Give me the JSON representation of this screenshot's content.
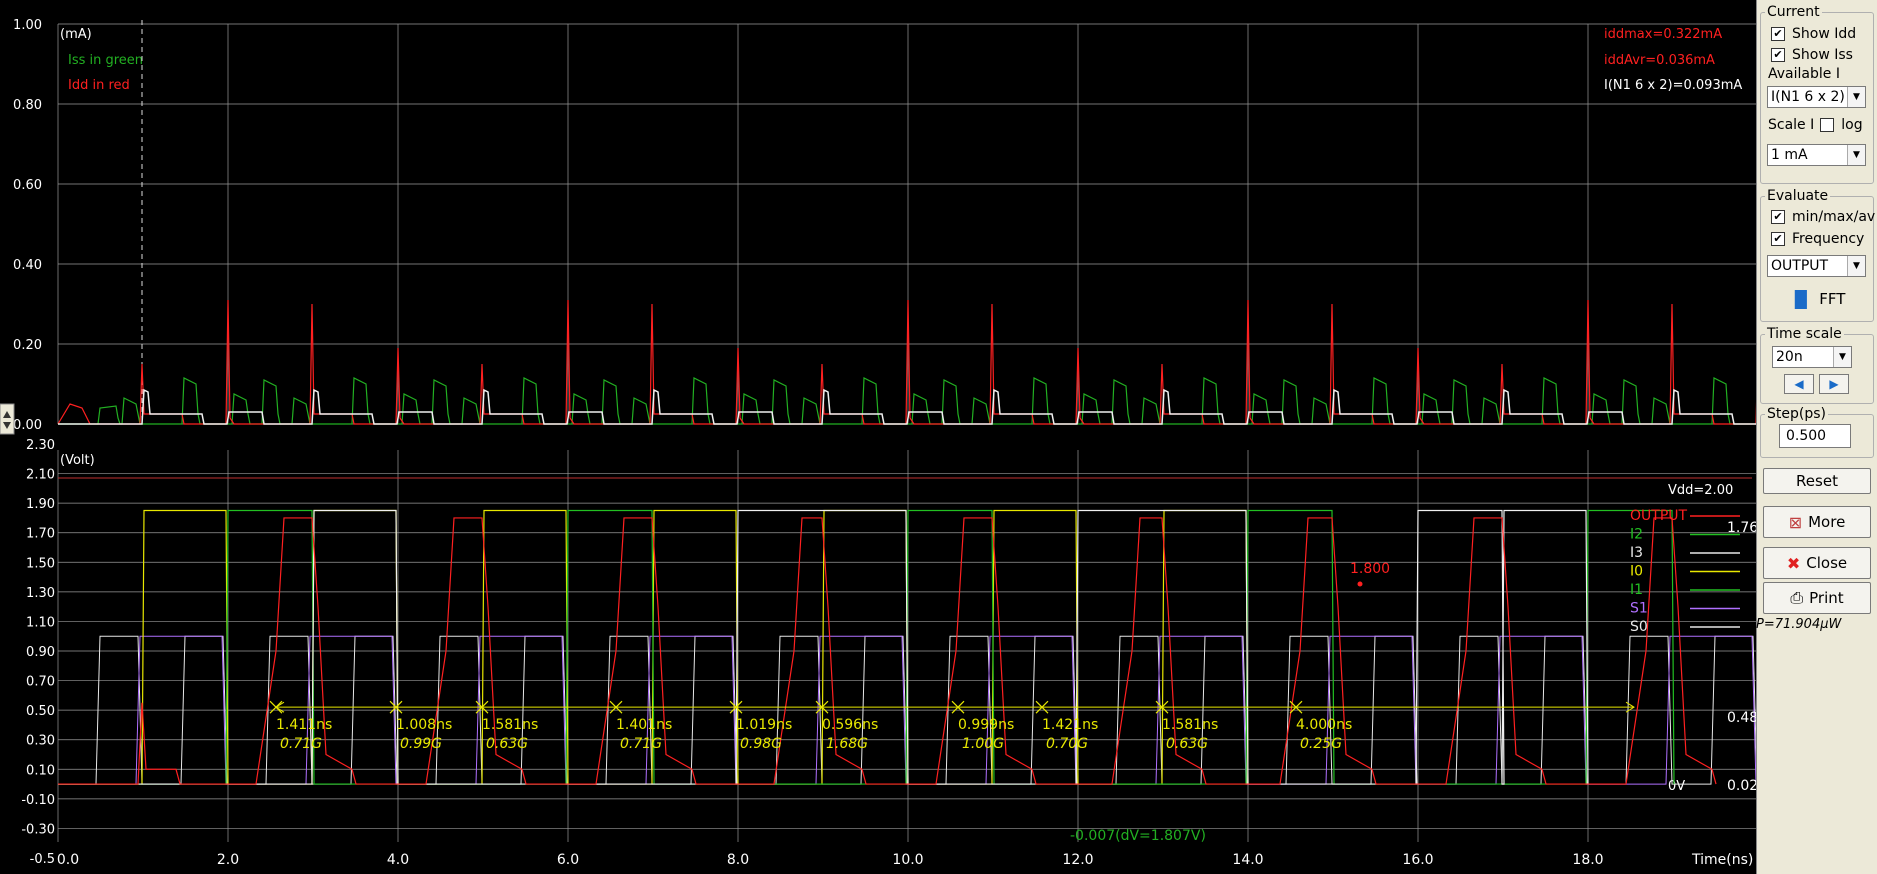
{
  "current_plot": {
    "unit_label": "(mA)",
    "legend": {
      "iss": "Iss in green",
      "idd": "Idd in red"
    },
    "stats": {
      "iddmax": "iddmax=0.322mA",
      "iddavr": "iddAvr=0.036mA",
      "inode": "I(N1 6 x 2)=0.093mA"
    },
    "y_ticks": [
      "1.00",
      "0.80",
      "0.60",
      "0.40",
      "0.20",
      "0.00"
    ]
  },
  "voltage_plot": {
    "unit_label": "(Volt)",
    "y_ticks": [
      "2.30",
      "2.10",
      "1.90",
      "1.70",
      "1.50",
      "1.30",
      "1.10",
      "0.90",
      "0.70",
      "0.50",
      "0.30",
      "0.10",
      "-0.10",
      "-0.30",
      "-0.5"
    ],
    "x_ticks": [
      "0.0",
      "2.0",
      "4.0",
      "6.0",
      "8.0",
      "10.0",
      "12.0",
      "14.0",
      "16.0",
      "18.0"
    ],
    "x_label": "Time(ns)",
    "vdd_label": "Vdd=2.00",
    "zero_label": "0V",
    "cursor_value": "1.800",
    "cursor_bottom": "-0.007(dV=1.807V)",
    "right_values": [
      "1.76",
      "0.48",
      "0.02"
    ],
    "signals": [
      {
        "name": "OUTPUT",
        "color": "#ff2020"
      },
      {
        "name": "I2",
        "color": "#22c022"
      },
      {
        "name": "I3",
        "color": "#e8e8e8"
      },
      {
        "name": "I0",
        "color": "#e8e800"
      },
      {
        "name": "I1",
        "color": "#22c022"
      },
      {
        "name": "S1",
        "color": "#b070ff"
      },
      {
        "name": "S0",
        "color": "#e8e8e8"
      }
    ],
    "measurements": [
      {
        "ns": "1.411ns",
        "freq": "0.71G"
      },
      {
        "ns": "1.008ns",
        "freq": "0.99G"
      },
      {
        "ns": "1.581ns",
        "freq": "0.63G"
      },
      {
        "ns": "1.401ns",
        "freq": "0.71G"
      },
      {
        "ns": "1.019ns",
        "freq": "0.98G"
      },
      {
        "ns": "0.596ns",
        "freq": "1.68G"
      },
      {
        "ns": "0.999ns",
        "freq": "1.00G"
      },
      {
        "ns": "1.421ns",
        "freq": "0.70G"
      },
      {
        "ns": "1.581ns",
        "freq": "0.63G"
      },
      {
        "ns": "4.000ns",
        "freq": "0.25G"
      }
    ]
  },
  "panel": {
    "current": {
      "title": "Current",
      "show_idd": "Show Idd",
      "show_iss": "Show Iss",
      "available_label": "Available I",
      "available_value": "I(N1 6 x 2)",
      "scale_label": "Scale I",
      "log_label": "log",
      "scale_value": "1 mA"
    },
    "evaluate": {
      "title": "Evaluate",
      "minmax": "min/max/av",
      "frequency": "Frequency",
      "signal_value": "OUTPUT",
      "fft_label": "FFT"
    },
    "time_scale": {
      "title": "Time scale",
      "value": "20n"
    },
    "step": {
      "title": "Step(ps)",
      "value": "0.500"
    },
    "buttons": {
      "reset": "Reset",
      "more": "More",
      "close": "Close",
      "print": "Print"
    },
    "power": "P=71.904µW"
  },
  "colors": {
    "idd": "#ff2020",
    "iss": "#22b022",
    "grid": "#9a9a9a",
    "measure": "#e8e800",
    "label": "#ffffff"
  }
}
